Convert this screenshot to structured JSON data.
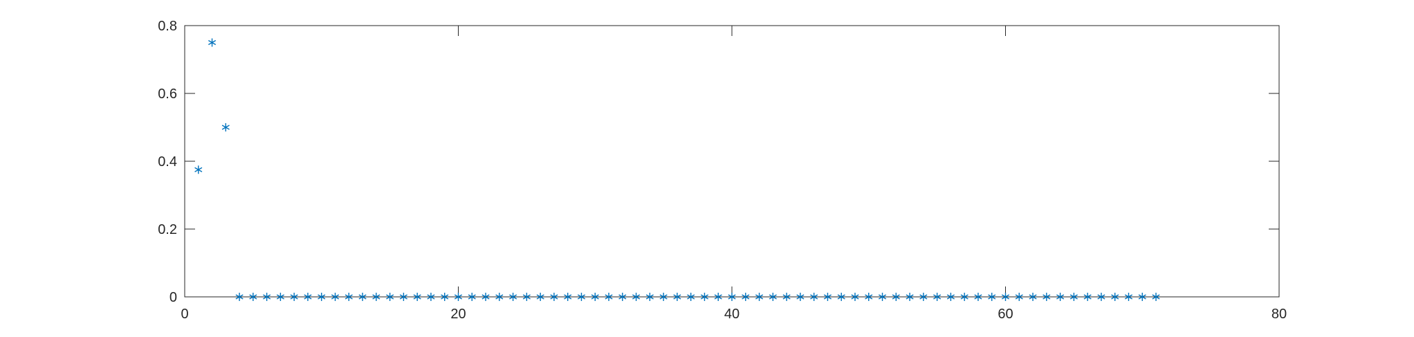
{
  "chart_data": {
    "type": "scatter",
    "title": "",
    "xlabel": "",
    "ylabel": "",
    "xlim": [
      0,
      80
    ],
    "ylim": [
      0,
      0.8
    ],
    "xticks": [
      "0",
      "20",
      "40",
      "60",
      "80"
    ],
    "yticks": [
      "0",
      "0.2",
      "0.4",
      "0.6",
      "0.8"
    ],
    "grid": false,
    "box": true,
    "marker": "asterisk",
    "marker_color": "#0072BD",
    "series": [
      {
        "x": [
          1,
          2,
          3,
          4,
          5,
          6,
          7,
          8,
          9,
          10,
          11,
          12,
          13,
          14,
          15,
          16,
          17,
          18,
          19,
          20,
          21,
          22,
          23,
          24,
          25,
          26,
          27,
          28,
          29,
          30,
          31,
          32,
          33,
          34,
          35,
          36,
          37,
          38,
          39,
          40,
          41,
          42,
          43,
          44,
          45,
          46,
          47,
          48,
          49,
          50,
          51,
          52,
          53,
          54,
          55,
          56,
          57,
          58,
          59,
          60,
          61,
          62,
          63,
          64,
          65,
          66,
          67,
          68,
          69,
          70,
          71
        ],
        "y": [
          0.375,
          0.75,
          0.5,
          0,
          0,
          0,
          0,
          0,
          0,
          0,
          0,
          0,
          0,
          0,
          0,
          0,
          0,
          0,
          0,
          0,
          0,
          0,
          0,
          0,
          0,
          0,
          0,
          0,
          0,
          0,
          0,
          0,
          0,
          0,
          0,
          0,
          0,
          0,
          0,
          0,
          0,
          0,
          0,
          0,
          0,
          0,
          0,
          0,
          0,
          0,
          0,
          0,
          0,
          0,
          0,
          0,
          0,
          0,
          0,
          0,
          0,
          0,
          0,
          0,
          0,
          0,
          0,
          0,
          0,
          0,
          0
        ]
      }
    ]
  }
}
